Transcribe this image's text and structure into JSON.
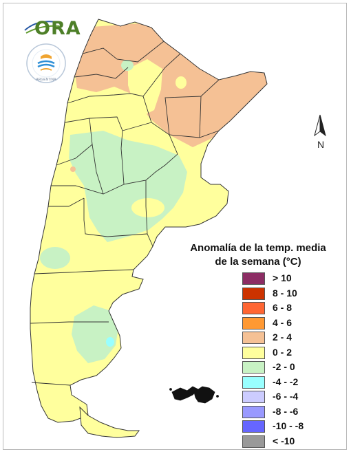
{
  "logo": {
    "text": "ORA",
    "seal_caption": "ARGENTINA",
    "seal_icon": "smn-seal-icon"
  },
  "north_arrow": {
    "label": "N",
    "icon": "north-arrow-icon"
  },
  "legend": {
    "title_line1": "Anomalía de la temp. media",
    "title_line2": "de la semana (°C)",
    "classes": [
      {
        "label": "> 10",
        "color": "#8c2d64"
      },
      {
        "label": "8 - 10",
        "color": "#cc3300"
      },
      {
        "label": "6 - 8",
        "color": "#ff6633"
      },
      {
        "label": "4 - 6",
        "color": "#ff9933"
      },
      {
        "label": "2 - 4",
        "color": "#f5c195"
      },
      {
        "label": "0 - 2",
        "color": "#ffff9d"
      },
      {
        "label": "-2 - 0",
        "color": "#c8f2c4"
      },
      {
        "label": "-4 - -2",
        "color": "#99ffff"
      },
      {
        "label": "-6 - -4",
        "color": "#ccccff"
      },
      {
        "label": "-8 - -6",
        "color": "#9999ff"
      },
      {
        "label": "-10 - -8",
        "color": "#6666ff"
      },
      {
        "label": "< -10",
        "color": "#999999"
      }
    ]
  },
  "map": {
    "colors": {
      "warm": "#f5c195",
      "neutral": "#ffff9d",
      "cool": "#c8f2c4",
      "cold": "#99ffff",
      "border": "#333333"
    }
  }
}
